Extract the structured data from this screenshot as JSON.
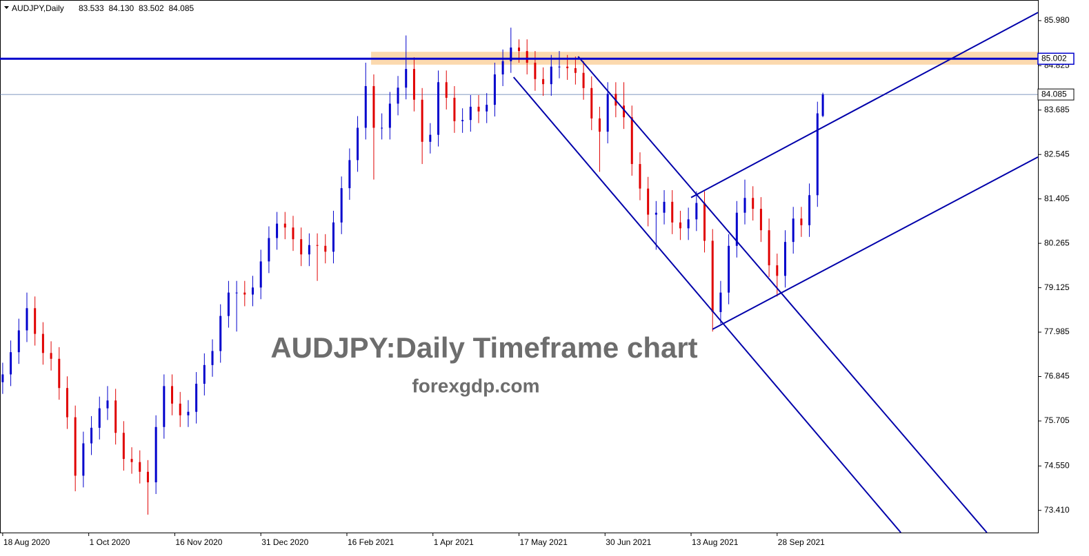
{
  "chart_data": {
    "type": "candlestick",
    "header": {
      "symbol": "AUDJPY,Daily",
      "ohlc": [
        83.533,
        {
          "value": 84.13,
          "label": "84.130"
        },
        83.502,
        84.085
      ]
    },
    "title": "AUDJPY:Daily Timeframe chart",
    "subtitle": "forexgdp.com",
    "x": [
      0,
      3,
      6,
      9,
      12,
      15,
      18,
      21,
      24,
      27,
      30,
      33,
      36,
      39,
      42,
      45,
      48,
      51,
      54,
      57,
      60,
      63,
      66,
      69,
      72,
      75,
      78,
      81,
      84,
      87,
      90,
      93,
      96,
      99,
      102,
      105,
      108,
      111,
      114,
      117,
      120,
      123,
      126,
      129,
      132,
      135,
      138,
      141,
      144,
      147,
      150,
      153,
      156,
      159,
      162,
      165,
      168,
      171,
      174,
      177,
      180,
      183,
      186,
      189,
      192,
      195,
      198,
      201,
      204,
      207,
      210,
      213,
      216,
      219,
      222,
      225,
      228,
      231,
      234,
      237,
      240,
      243,
      246,
      249,
      252,
      255,
      258,
      261,
      264,
      267,
      270,
      273,
      276,
      279,
      282,
      285,
      288,
      291,
      294,
      297,
      300,
      303,
      305
    ],
    "open": [
      76.7,
      76.9,
      77.47,
      78.03,
      78.6,
      77.94,
      77.45,
      77.3,
      76.55,
      75.8,
      74.3,
      75.13,
      75.53,
      76.03,
      76.23,
      75.4,
      74.73,
      74.65,
      74.4,
      74.13,
      75.55,
      76.6,
      76.15,
      75.85,
      75.94,
      76.66,
      77.14,
      77.5,
      78.4,
      79.0,
      79.0,
      78.95,
      79.13,
      79.8,
      80.4,
      80.77,
      80.67,
      80.37,
      79.98,
      80.22,
      80.2,
      80.05,
      80.8,
      81.68,
      82.4,
      83.23,
      84.3,
      83.23,
      83.23,
      83.85,
      84.26,
      84.74,
      83.95,
      82.87,
      83.05,
      84.4,
      84.0,
      83.4,
      83.43,
      83.77,
      83.65,
      83.82,
      84.6,
      84.94,
      85.29,
      85.2,
      84.9,
      84.48,
      84.35,
      84.8,
      84.8,
      84.76,
      84.64,
      84.25,
      83.47,
      83.13,
      84.1,
      83.8,
      83.5,
      82.3,
      81.67,
      81.0,
      81.05,
      81.33,
      80.8,
      80.65,
      80.88,
      81.3,
      80.33,
      78.5,
      79.0,
      80.2,
      81.05,
      81.43,
      81.15,
      80.6,
      79.7,
      79.43,
      80.3,
      80.9,
      80.73,
      81.5,
      83.533
    ],
    "high": [
      77.2,
      77.77,
      78.33,
      79.0,
      78.9,
      78.24,
      77.75,
      77.6,
      76.85,
      76.1,
      75.43,
      75.83,
      76.33,
      76.6,
      76.53,
      75.7,
      75.03,
      74.95,
      74.7,
      75.85,
      76.9,
      76.9,
      76.45,
      76.24,
      76.96,
      77.44,
      77.8,
      78.7,
      79.3,
      79.3,
      79.3,
      79.43,
      80.1,
      80.7,
      81.07,
      81.07,
      80.97,
      80.67,
      80.52,
      80.52,
      80.5,
      81.1,
      81.98,
      82.7,
      83.53,
      84.9,
      84.6,
      83.6,
      84.15,
      84.56,
      85.6,
      85.04,
      84.25,
      83.35,
      84.7,
      84.7,
      84.3,
      83.73,
      84.07,
      84.07,
      84.12,
      84.9,
      85.24,
      85.8,
      85.5,
      85.5,
      85.2,
      84.78,
      85.1,
      85.2,
      85.1,
      85.06,
      84.94,
      84.55,
      83.77,
      84.4,
      84.4,
      84.4,
      83.8,
      82.6,
      81.97,
      81.35,
      81.63,
      81.63,
      81.1,
      81.18,
      81.6,
      81.6,
      80.63,
      79.3,
      80.5,
      81.35,
      81.9,
      81.73,
      81.45,
      80.9,
      80.0,
      80.6,
      81.2,
      81.2,
      81.8,
      83.9,
      84.13
    ],
    "low": [
      76.4,
      76.6,
      77.17,
      77.73,
      77.64,
      77.15,
      77.0,
      76.25,
      75.5,
      73.9,
      74.0,
      74.83,
      75.23,
      75.73,
      75.1,
      74.43,
      74.35,
      74.1,
      73.3,
      73.83,
      75.25,
      75.85,
      75.55,
      75.55,
      75.64,
      76.36,
      76.84,
      77.2,
      78.1,
      78.0,
      78.65,
      78.65,
      78.83,
      79.5,
      80.1,
      80.37,
      80.07,
      79.68,
      79.68,
      79.3,
      79.75,
      79.75,
      80.5,
      81.38,
      82.1,
      82.93,
      81.9,
      82.93,
      82.93,
      83.55,
      83.96,
      83.65,
      82.3,
      82.57,
      82.75,
      83.7,
      83.1,
      83.1,
      83.13,
      83.35,
      83.35,
      83.52,
      84.3,
      84.64,
      84.9,
      84.6,
      84.18,
      84.05,
      84.05,
      84.5,
      84.46,
      84.34,
      83.95,
      83.17,
      82.1,
      82.83,
      83.5,
      83.2,
      82.0,
      81.37,
      80.7,
      80.1,
      80.75,
      80.5,
      80.35,
      80.35,
      80.58,
      80.03,
      78.0,
      78.2,
      78.7,
      79.9,
      80.75,
      80.85,
      80.3,
      79.4,
      78.9,
      79.13,
      80.0,
      80.43,
      80.43,
      81.2,
      83.502
    ],
    "close": [
      76.9,
      77.47,
      78.03,
      78.6,
      77.94,
      77.45,
      77.3,
      76.55,
      75.8,
      74.3,
      75.13,
      75.53,
      76.03,
      76.23,
      75.4,
      74.73,
      74.65,
      74.4,
      74.13,
      75.55,
      76.6,
      76.15,
      75.85,
      75.94,
      76.66,
      77.14,
      77.5,
      78.4,
      79.0,
      79.0,
      78.95,
      79.13,
      79.8,
      80.4,
      80.77,
      80.67,
      80.37,
      79.98,
      80.22,
      80.2,
      80.05,
      80.8,
      81.68,
      82.4,
      83.23,
      84.3,
      83.23,
      83.23,
      83.85,
      84.26,
      84.74,
      83.95,
      82.87,
      83.05,
      84.4,
      84.0,
      83.4,
      83.43,
      83.77,
      83.65,
      83.82,
      84.6,
      84.94,
      85.29,
      85.2,
      84.9,
      84.48,
      84.35,
      84.8,
      84.8,
      84.76,
      84.64,
      84.25,
      83.47,
      83.13,
      84.1,
      83.8,
      83.5,
      82.3,
      81.67,
      81.0,
      81.05,
      81.33,
      80.8,
      80.65,
      80.88,
      81.3,
      80.33,
      78.5,
      79.0,
      80.2,
      81.05,
      81.43,
      81.15,
      80.6,
      79.7,
      79.43,
      80.3,
      80.9,
      80.73,
      81.5,
      83.6,
      84.085
    ],
    "up_color": "#0000cc",
    "down_color": "#e00000",
    "xlim": [
      -1,
      385
    ],
    "xticks": [
      {
        "value": 0,
        "label": "18 Aug 2020"
      },
      {
        "value": 32,
        "label": "1 Oct 2020"
      },
      {
        "value": 64,
        "label": "16 Nov 2020"
      },
      {
        "value": 96,
        "label": "31 Dec 2020"
      },
      {
        "value": 128,
        "label": "16 Feb 2021"
      },
      {
        "value": 160,
        "label": "1 Apr 2021"
      },
      {
        "value": 192,
        "label": "17 May 2021"
      },
      {
        "value": 224,
        "label": "30 Jun 2021"
      },
      {
        "value": 256,
        "label": "13 Aug 2021"
      },
      {
        "value": 288,
        "label": "28 Sep 2021"
      }
    ],
    "ylim": [
      72.84,
      86.51
    ],
    "yticks": [
      {
        "value": 85.98,
        "label": "85.980"
      },
      84.825,
      83.685,
      82.545,
      81.405,
      80.265,
      79.125,
      77.985,
      76.845,
      75.705,
      {
        "value": 74.55,
        "label": "74.550"
      },
      {
        "value": 73.41,
        "label": "73.410"
      }
    ],
    "resistance_line": 85.002,
    "resistance_color": "#0000cc",
    "current_price": 84.085,
    "zone": {
      "start": 137,
      "range": [
        84.85,
        85.18
      ],
      "color": "#fbd9ae"
    },
    "trendlines": [
      {
        "x": [
          214,
          366
        ],
        "y": [
          85.06,
          72.84
        ]
      },
      {
        "x": [
          190,
          334
        ],
        "y": [
          84.53,
          72.84
        ]
      },
      {
        "x": [
          256,
          385
        ],
        "y": [
          81.44,
          86.19
        ]
      },
      {
        "x": [
          264,
          385
        ],
        "y": [
          78.06,
          82.48
        ]
      }
    ],
    "trendline_color": "#0000aa"
  }
}
